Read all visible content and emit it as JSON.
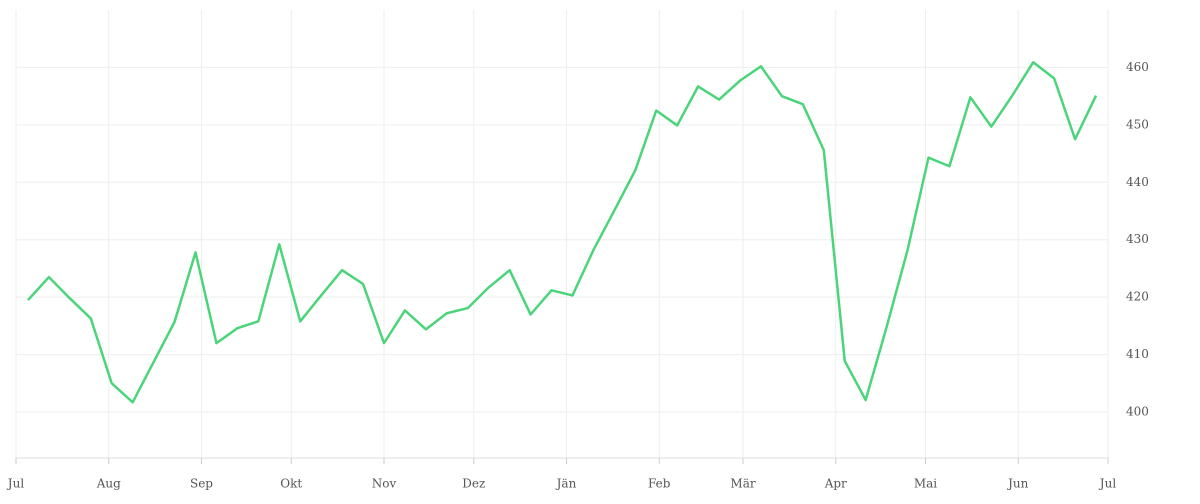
{
  "chart_data": {
    "type": "line",
    "x": [
      4,
      11,
      18,
      25,
      32,
      39,
      46,
      53,
      60,
      67,
      74,
      81,
      88,
      95,
      102,
      109,
      116,
      123,
      130,
      137,
      144,
      151,
      158,
      165,
      172,
      179,
      186,
      193,
      200,
      207,
      214,
      221,
      228,
      235,
      242,
      249,
      256,
      263,
      270,
      277,
      284,
      291,
      298,
      305,
      312,
      319,
      326,
      333,
      340,
      347,
      354,
      361
    ],
    "series": [
      {
        "color": "#4cd47a",
        "values": [
          419.5,
          423.5,
          419.8,
          416.3,
          405.0,
          401.7,
          408.7,
          415.7,
          427.8,
          412.0,
          414.6,
          415.8,
          429.2,
          415.8,
          420.3,
          424.7,
          422.3,
          412.0,
          417.7,
          414.4,
          417.2,
          418.1,
          421.7,
          424.7,
          417.0,
          421.2,
          420.3,
          428.2,
          435.1,
          442.1,
          452.5,
          449.9,
          456.7,
          454.4,
          457.7,
          460.2,
          455.0,
          453.6,
          445.6,
          408.9,
          402.1,
          414.8,
          428.2,
          444.3,
          442.8,
          454.8,
          449.7,
          455.1,
          460.9,
          458.1,
          447.5,
          455.1
        ]
      }
    ],
    "xlim": [
      0,
      365
    ],
    "xticks": [
      {
        "value": 0,
        "label": "Jul"
      },
      {
        "value": 31,
        "label": "Aug"
      },
      {
        "value": 62,
        "label": "Sep"
      },
      {
        "value": 92,
        "label": "Okt"
      },
      {
        "value": 123,
        "label": "Nov"
      },
      {
        "value": 153,
        "label": "Dez"
      },
      {
        "value": 184,
        "label": "Jän"
      },
      {
        "value": 215,
        "label": "Feb"
      },
      {
        "value": 243,
        "label": "Mär"
      },
      {
        "value": 274,
        "label": "Apr"
      },
      {
        "value": 304,
        "label": "Mai"
      },
      {
        "value": 335,
        "label": "Jun"
      },
      {
        "value": 365,
        "label": "Jul"
      }
    ],
    "ylim": [
      392,
      470
    ],
    "yticks": [
      400,
      410,
      420,
      430,
      440,
      450,
      460
    ],
    "grid": true
  }
}
